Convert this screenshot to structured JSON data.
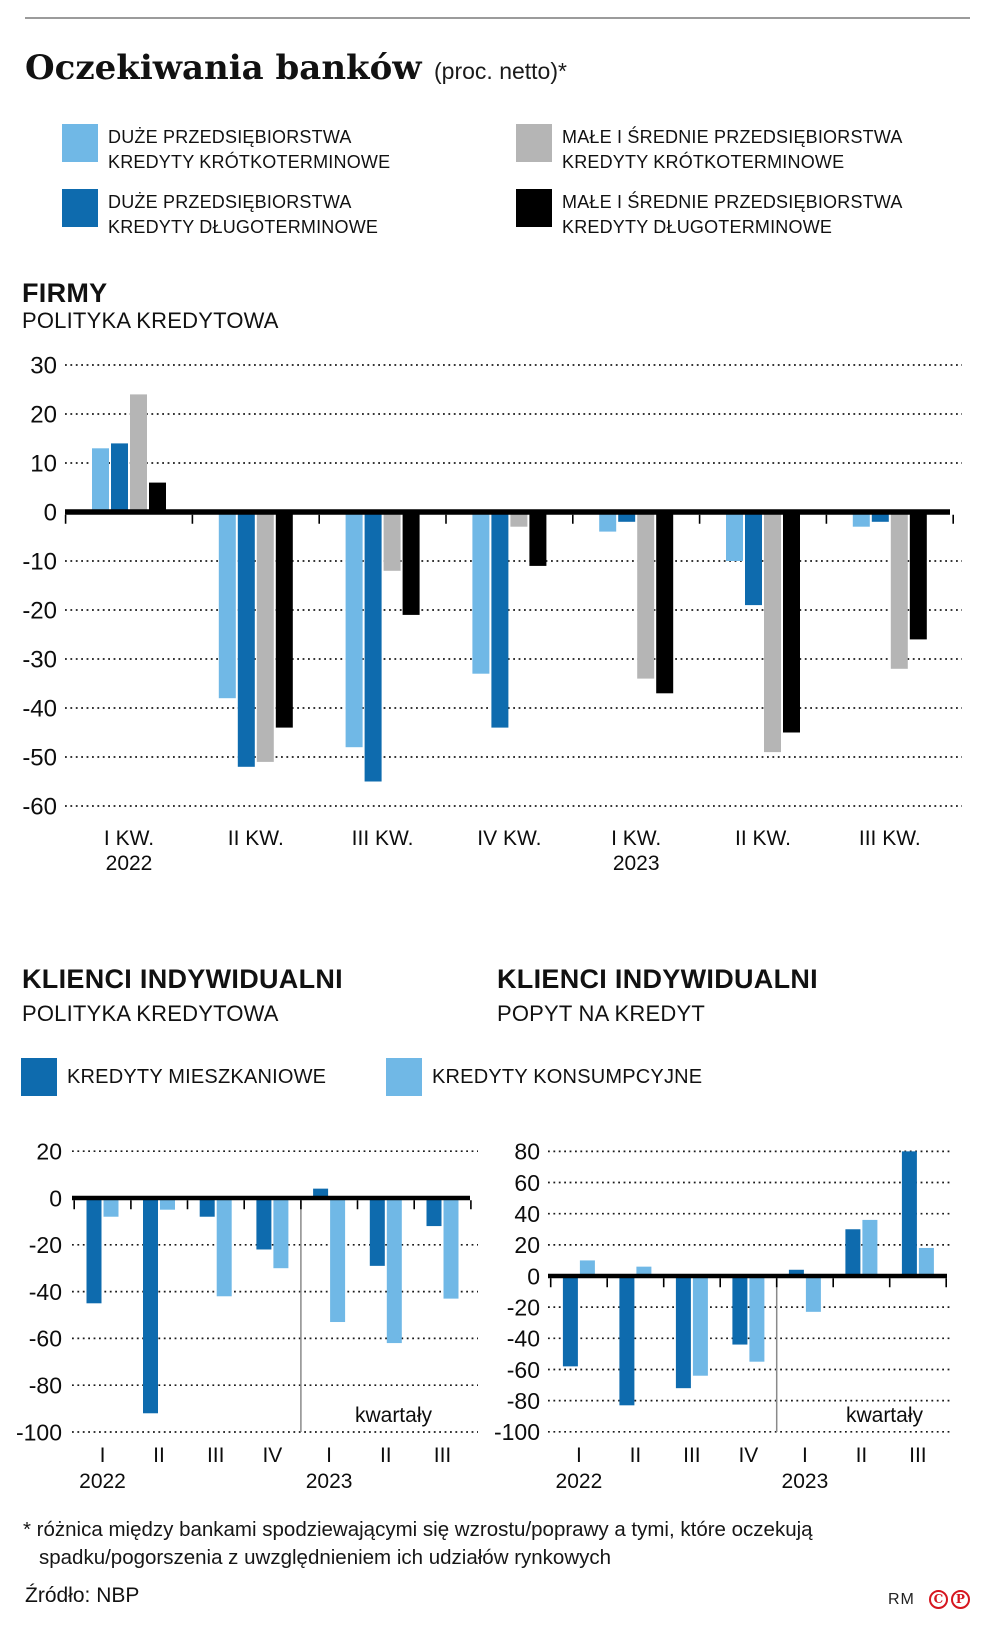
{
  "page": {
    "title": "Oczekiwania banków",
    "title_suffix": "(proc. netto)*"
  },
  "colors": {
    "light_blue": "#70B8E6",
    "dark_blue": "#0E6BAE",
    "gray": "#B5B5B5",
    "black": "#000000",
    "grid": "#1a1a1a",
    "separator": "#8a8a8a",
    "red": "#d6161f"
  },
  "legend_top": {
    "items": [
      {
        "color": "light_blue",
        "line1": "DUŻE PRZEDSIĘBIORSTWA",
        "line2": "KREDYTY KRÓTKOTERMINOWE"
      },
      {
        "color": "dark_blue",
        "line1": "DUŻE PRZEDSIĘBIORSTWA",
        "line2": "KREDYTY DŁUGOTERMINOWE"
      },
      {
        "color": "gray",
        "line1": "MAŁE I ŚREDNIE PRZEDSIĘBIORSTWA",
        "line2": "KREDYTY KRÓTKOTERMINOWE"
      },
      {
        "color": "black",
        "line1": "MAŁE I ŚREDNIE PRZEDSIĘBIORSTWA",
        "line2": "KREDYTY DŁUGOTERMINOWE"
      }
    ]
  },
  "sections": {
    "firmy": {
      "title": "FIRMY",
      "subtitle": "POLITYKA KREDYTOWA"
    },
    "klienci_left": {
      "title": "KLIENCI INDYWIDUALNI",
      "subtitle": "POLITYKA KREDYTOWA"
    },
    "klienci_right": {
      "title": "KLIENCI INDYWIDUALNI",
      "subtitle": "POPYT NA KREDYT"
    }
  },
  "legend_bottom": {
    "items": [
      {
        "color": "dark_blue",
        "label": "KREDYTY MIESZKANIOWE"
      },
      {
        "color": "light_blue",
        "label": "KREDYTY KONSUMPCYJNE"
      }
    ]
  },
  "chart_data": [
    {
      "type": "bar",
      "title": "FIRMY",
      "subtitle": "POLITYKA KREDYTOWA",
      "categories": [
        "I KW.",
        "II KW.",
        "III KW.",
        "IV KW.",
        "I KW.",
        "II KW.",
        "III KW."
      ],
      "year_labels": {
        "0": "2022",
        "4": "2023"
      },
      "series": [
        {
          "name": "DUŻE PRZEDSIĘBIORSTWA KREDYTY KRÓTKOTERMINOWE",
          "color": "light_blue",
          "values": [
            13,
            -38,
            -48,
            -33,
            -4,
            -10,
            -3
          ]
        },
        {
          "name": "DUŻE PRZEDSIĘBIORSTWA KREDYTY DŁUGOTERMINOWE",
          "color": "dark_blue",
          "values": [
            14,
            -52,
            -55,
            -44,
            -2,
            -19,
            -2
          ]
        },
        {
          "name": "MAŁE I ŚREDNIE PRZEDSIĘBIORSTWA KREDYTY KRÓTKOTERMINOWE",
          "color": "gray",
          "values": [
            24,
            -51,
            -12,
            -3,
            -34,
            -49,
            -32
          ]
        },
        {
          "name": "MAŁE I ŚREDNIE PRZEDSIĘBIORSTWA KREDYTY DŁUGOTERMINOWE",
          "color": "black",
          "values": [
            6,
            -44,
            -21,
            -11,
            -37,
            -45,
            -26
          ]
        }
      ],
      "ylim": [
        -60,
        30
      ],
      "ystep": 10,
      "grid": "dotted",
      "xlabel": "",
      "ylabel": ""
    },
    {
      "type": "bar",
      "title": "KLIENCI INDYWIDUALNI",
      "subtitle": "POLITYKA KREDYTOWA",
      "categories": [
        "I",
        "II",
        "III",
        "IV",
        "I",
        "II",
        "III"
      ],
      "year_labels": {
        "0": "2022",
        "4": "2023"
      },
      "series": [
        {
          "name": "KREDYTY MIESZKANIOWE",
          "color": "dark_blue",
          "values": [
            -45,
            -92,
            -8,
            -22,
            4,
            -29,
            -12
          ]
        },
        {
          "name": "KREDYTY KONSUMPCYJNE",
          "color": "light_blue",
          "values": [
            -8,
            -5,
            -42,
            -30,
            -53,
            -62,
            -43
          ]
        }
      ],
      "ylim": [
        -100,
        20
      ],
      "ystep": 20,
      "grid": "dotted",
      "xlabel": "kwartały",
      "ylabel": ""
    },
    {
      "type": "bar",
      "title": "KLIENCI INDYWIDUALNI",
      "subtitle": "POPYT NA KREDYT",
      "categories": [
        "I",
        "II",
        "III",
        "IV",
        "I",
        "II",
        "III"
      ],
      "year_labels": {
        "0": "2022",
        "4": "2023"
      },
      "series": [
        {
          "name": "KREDYTY MIESZKANIOWE",
          "color": "dark_blue",
          "values": [
            -58,
            -83,
            -72,
            -44,
            4,
            30,
            80
          ]
        },
        {
          "name": "KREDYTY KONSUMPCYJNE",
          "color": "light_blue",
          "values": [
            10,
            6,
            -64,
            -55,
            -23,
            36,
            18
          ]
        }
      ],
      "ylim": [
        -100,
        80
      ],
      "ystep": 20,
      "grid": "dotted",
      "xlabel": "kwartały",
      "ylabel": ""
    }
  ],
  "footnote": {
    "line1": "* różnica między bankami spodziewającymi się wzrostu/poprawy a tymi, które oczekują",
    "line2": "spadku/pogorszenia z uwzględnieniem ich udziałów rynkowych"
  },
  "source": "Źródło: NBP",
  "credits": {
    "initials": "RM",
    "icon1_letter": "C",
    "icon2_letter": "P"
  }
}
